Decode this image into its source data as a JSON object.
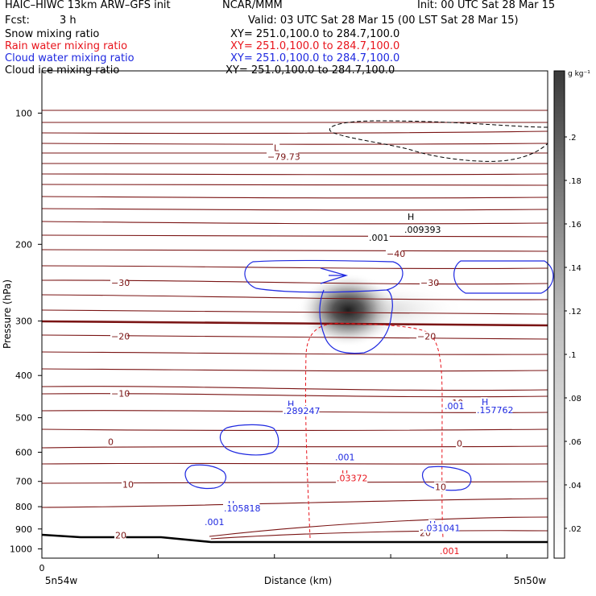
{
  "header": {
    "title_left": "HAIC–HIWC 13km ARW–GFS init",
    "title_center": "NCAR/MMM",
    "init": "Init: 00 UTC Sat 28 Mar 15",
    "fcst_label": "Fcst:",
    "fcst_value": "3 h",
    "valid": "Valid: 03 UTC Sat 28 Mar 15 (00 LST Sat 28 Mar 15)"
  },
  "fields": [
    {
      "name": "Snow mixing ratio",
      "xy": "XY= 251.0,100.0 to 284.7,100.0",
      "color": "#000000"
    },
    {
      "name": "Rain water mixing ratio",
      "xy": "XY= 251.0,100.0 to 284.7,100.0",
      "color": "#e8141c"
    },
    {
      "name": "Cloud water mixing ratio",
      "xy": "XY= 251.0,100.0 to 284.7,100.0",
      "color": "#1e28e0"
    },
    {
      "name": "Cloud ice mixing ratio",
      "xy": "XY= 251.0,100.0 to 284.7,100.0",
      "color": "#000000"
    }
  ],
  "chart_data": {
    "type": "contour",
    "ylabel": "Pressure (hPa)",
    "xlabel": "Distance (km)",
    "y_axis": "log-pressure, inverted",
    "ylim": [
      1050,
      80
    ],
    "yticks": [
      "100",
      "200",
      "300",
      "400",
      "500",
      "600",
      "700",
      "800",
      "900",
      "1000"
    ],
    "x_origin_label": "0",
    "x_left_label": "5n54w",
    "x_right_label": "5n50w",
    "colorbar": {
      "unit": "g kg⁻¹",
      "labels": [
        ".2",
        ".18",
        ".16",
        ".14",
        ".12",
        ".1",
        ".08",
        ".06",
        ".04",
        ".02"
      ]
    },
    "temperature_contours": {
      "color": "#7a1414",
      "labels": [
        {
          "text": "L",
          "p": 120
        },
        {
          "text": "−79.73",
          "p": 126
        },
        {
          "text": "−40",
          "p": 210
        },
        {
          "text": "−30",
          "p": 245
        },
        {
          "text": "−30",
          "p": 245
        },
        {
          "text": "−20",
          "p": 325
        },
        {
          "text": "−20",
          "p": 325
        },
        {
          "text": "−10",
          "p": 440
        },
        {
          "text": "−10",
          "p": 462
        },
        {
          "text": "0",
          "p": 568
        },
        {
          "text": "0",
          "p": 572
        },
        {
          "text": "10",
          "p": 712
        },
        {
          "text": "10",
          "p": 720
        },
        {
          "text": "20",
          "p": 930
        },
        {
          "text": "20",
          "p": 918
        }
      ]
    },
    "snow_contours": {
      "color": "#000000",
      "labels": [
        {
          "text": "H",
          "p": 173
        },
        {
          "text": ".009393",
          "p": 185
        },
        {
          "text": ".001",
          "p": 193
        }
      ]
    },
    "rain_contours": {
      "color": "#e8141c",
      "labels": [
        {
          "text": "H",
          "p": 672
        },
        {
          "text": ".03372",
          "p": 688
        },
        {
          "text": ".001",
          "p": 1010
        }
      ]
    },
    "cloud_water_contours": {
      "color": "#1e28e0",
      "labels": [
        {
          "text": "H",
          "p": 465
        },
        {
          "text": ".289247",
          "p": 482
        },
        {
          "text": ".001",
          "p": 615
        },
        {
          "text": ".001",
          "p": 470
        },
        {
          "text": "H",
          "p": 460
        },
        {
          "text": ".157762",
          "p": 480
        },
        {
          "text": "H",
          "p": 790
        },
        {
          "text": ".105818",
          "p": 806
        },
        {
          "text": ".001",
          "p": 867
        },
        {
          "text": "H",
          "p": 878
        },
        {
          "text": ".031041",
          "p": 895
        }
      ]
    }
  }
}
